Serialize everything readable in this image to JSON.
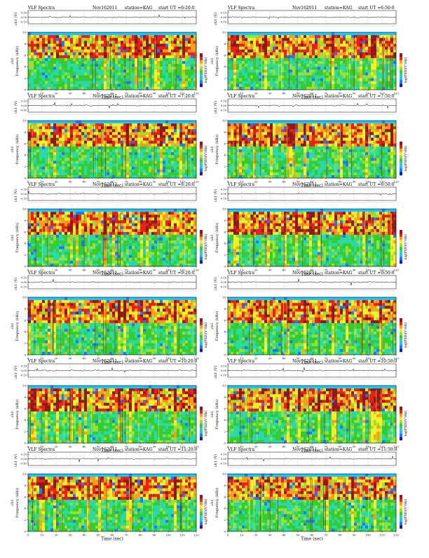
{
  "page": {
    "x_unit_label": "Time (sec)",
    "y_label_top": "ch1 (V)",
    "y_label_main": "Frequency (kHz)",
    "channel_label": "ch1",
    "colorbar_label": "log(PSD)(V²/Hz)"
  },
  "chart_data": [
    {
      "type": "heatmap",
      "title": "VLF Spectra",
      "date": "Nov162011",
      "station": "station=KAG",
      "start": "start UT =6:20:0",
      "x_ticks": [
        "0",
        "10",
        "20",
        "30",
        "40",
        "50",
        "60",
        "70",
        "80",
        "90",
        "100",
        "110",
        "120"
      ],
      "y_ticks": [
        "0",
        "2",
        "4",
        "6",
        "8",
        "10"
      ],
      "top_ticks": [
        "0.10",
        "0.00",
        "-0.10"
      ],
      "xlim": [
        0,
        120
      ],
      "ylim": [
        0,
        10
      ]
    },
    {
      "type": "heatmap",
      "title": "VLF Spectra",
      "date": "Nov162011",
      "station": "station=KAG",
      "start": "start UT =6:50:0",
      "x_ticks": [
        "0",
        "10",
        "20",
        "30",
        "40",
        "50",
        "60",
        "70",
        "80",
        "90",
        "100",
        "110",
        "120"
      ],
      "y_ticks": [
        "0",
        "2",
        "4",
        "6",
        "8",
        "10"
      ],
      "top_ticks": [
        "0.10",
        "0.00",
        "-0.10"
      ],
      "xlim": [
        0,
        120
      ],
      "ylim": [
        0,
        10
      ]
    },
    {
      "type": "heatmap",
      "title": "VLF Spectra",
      "date": "Nov162011",
      "station": "station=KAG",
      "start": "start UT =7:20:0",
      "x_ticks": [
        "0",
        "10",
        "20",
        "30",
        "40",
        "50",
        "60",
        "70",
        "80",
        "90",
        "100",
        "110",
        "120"
      ],
      "y_ticks": [
        "0",
        "2",
        "4",
        "6",
        "8",
        "10"
      ],
      "top_ticks": [
        "0.10",
        "0.00",
        "-0.10"
      ],
      "xlim": [
        0,
        120
      ],
      "ylim": [
        0,
        10
      ]
    },
    {
      "type": "heatmap",
      "title": "VLF Spectra",
      "date": "Nov162011",
      "station": "station=KAG",
      "start": "start UT =7:50:0",
      "x_ticks": [
        "0",
        "10",
        "20",
        "30",
        "40",
        "50",
        "60",
        "70",
        "80",
        "90",
        "100",
        "110",
        "120"
      ],
      "y_ticks": [
        "0",
        "2",
        "4",
        "6",
        "8",
        "10"
      ],
      "top_ticks": [
        "0.10",
        "0.00",
        "-0.10"
      ],
      "xlim": [
        0,
        120
      ],
      "ylim": [
        0,
        10
      ]
    },
    {
      "type": "heatmap",
      "title": "VLF Spectra",
      "date": "Nov162011",
      "station": "station=KAG",
      "start": "start UT =8:20:0",
      "x_ticks": [
        "0",
        "10",
        "20",
        "30",
        "40",
        "50",
        "60",
        "70",
        "80",
        "90",
        "100",
        "110",
        "120"
      ],
      "y_ticks": [
        "0",
        "2",
        "4",
        "6",
        "8",
        "10"
      ],
      "top_ticks": [
        "0.10",
        "0.00",
        "-0.10"
      ],
      "xlim": [
        0,
        120
      ],
      "ylim": [
        0,
        10
      ]
    },
    {
      "type": "heatmap",
      "title": "VLF Spectra",
      "date": "Nov162011",
      "station": "station=KAG",
      "start": "start UT =8:50:0",
      "x_ticks": [
        "0",
        "10",
        "20",
        "30",
        "40",
        "50",
        "60",
        "70",
        "80",
        "90",
        "100",
        "110",
        "120"
      ],
      "y_ticks": [
        "0",
        "2",
        "4",
        "6",
        "8",
        "10"
      ],
      "top_ticks": [
        "0.10",
        "0.00",
        "-0.10"
      ],
      "xlim": [
        0,
        120
      ],
      "ylim": [
        0,
        10
      ]
    },
    {
      "type": "heatmap",
      "title": "VLF Spectra",
      "date": "Nov162011",
      "station": "station=KAG",
      "start": "start UT =9:20:0",
      "x_ticks": [
        "0",
        "10",
        "20",
        "30",
        "40",
        "50",
        "60",
        "70",
        "80",
        "90",
        "100",
        "110",
        "120"
      ],
      "y_ticks": [
        "0",
        "2",
        "4",
        "6",
        "8",
        "10"
      ],
      "top_ticks": [
        "0.10",
        "0.00",
        "-0.10"
      ],
      "xlim": [
        0,
        120
      ],
      "ylim": [
        0,
        10
      ]
    },
    {
      "type": "heatmap",
      "title": "VLF Spectra",
      "date": "Nov162011",
      "station": "station=KAG",
      "start": "start UT =9:50:0",
      "x_ticks": [
        "0",
        "10",
        "20",
        "30",
        "40",
        "50",
        "60",
        "70",
        "80",
        "90",
        "100",
        "110",
        "120"
      ],
      "y_ticks": [
        "0",
        "2",
        "4",
        "6",
        "8",
        "10"
      ],
      "top_ticks": [
        "0.10",
        "0.00",
        "-0.10"
      ],
      "xlim": [
        0,
        120
      ],
      "ylim": [
        0,
        10
      ]
    },
    {
      "type": "heatmap",
      "title": "VLF Spectra",
      "date": "Nov162011",
      "station": "station=KAG",
      "start": "start UT =10:20:0",
      "x_ticks": [
        "0",
        "10",
        "20",
        "30",
        "40",
        "50",
        "60",
        "70",
        "80",
        "90",
        "100",
        "110",
        "120"
      ],
      "y_ticks": [
        "0",
        "2",
        "4",
        "6",
        "8",
        "10"
      ],
      "top_ticks": [
        "0.10",
        "0.00",
        "-0.10"
      ],
      "xlim": [
        0,
        120
      ],
      "ylim": [
        0,
        10
      ]
    },
    {
      "type": "heatmap",
      "title": "VLF Spectra",
      "date": "Nov162011",
      "station": "station=KAG",
      "start": "start UT =10:50:0",
      "x_ticks": [
        "0",
        "10",
        "20",
        "30",
        "40",
        "50",
        "60",
        "70",
        "80",
        "90",
        "100",
        "110",
        "120"
      ],
      "y_ticks": [
        "0",
        "2",
        "4",
        "6",
        "8",
        "10"
      ],
      "top_ticks": [
        "0.10",
        "0.00",
        "-0.10"
      ],
      "xlim": [
        0,
        120
      ],
      "ylim": [
        0,
        10
      ]
    },
    {
      "type": "heatmap",
      "title": "VLF Spectra",
      "date": "Nov162011",
      "station": "station=KAG",
      "start": "start UT =11:20:0",
      "x_ticks": [
        "0",
        "10",
        "20",
        "30",
        "40",
        "50",
        "60",
        "70",
        "80",
        "90",
        "100",
        "110",
        "120"
      ],
      "y_ticks": [
        "0",
        "2",
        "4",
        "6",
        "8",
        "10"
      ],
      "top_ticks": [
        "0.10",
        "0.00",
        "-0.10"
      ],
      "xlim": [
        0,
        120
      ],
      "ylim": [
        0,
        10
      ]
    },
    {
      "type": "heatmap",
      "title": "VLF Spectra",
      "date": "Nov162011",
      "station": "station=KAG",
      "start": "start UT =11:50:0",
      "x_ticks": [
        "0",
        "10",
        "20",
        "30",
        "40",
        "50",
        "60",
        "70",
        "80",
        "90",
        "100",
        "110",
        "120"
      ],
      "y_ticks": [
        "0",
        "2",
        "4",
        "6",
        "8",
        "10"
      ],
      "top_ticks": [
        "0.10",
        "0.00",
        "-0.10"
      ],
      "xlim": [
        0,
        120
      ],
      "ylim": [
        0,
        10
      ]
    }
  ],
  "colors": {
    "colormap": [
      "#1a1aa8",
      "#1e78ff",
      "#16c8ff",
      "#2bd9a6",
      "#33cc33",
      "#99e033",
      "#f5f02a",
      "#ff9a1a",
      "#e8201a",
      "#8c1a1a"
    ],
    "axis": "#000000"
  }
}
